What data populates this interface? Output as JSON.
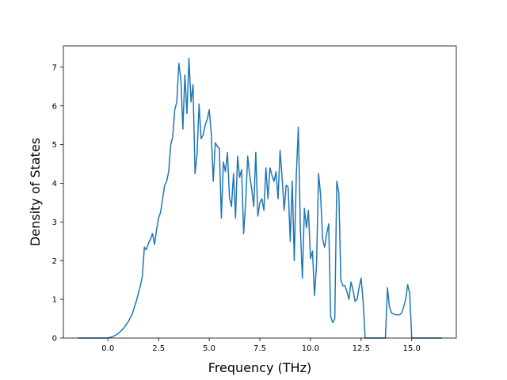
{
  "chart_data": {
    "type": "line",
    "title": "",
    "xlabel": "Frequency (THz)",
    "ylabel": "Density of States",
    "xlim": [
      -2.2,
      17.2
    ],
    "ylim": [
      0,
      7.55
    ],
    "xticks": [
      0.0,
      2.5,
      5.0,
      7.5,
      10.0,
      12.5,
      15.0
    ],
    "xtick_labels": [
      "0.0",
      "2.5",
      "5.0",
      "7.5",
      "10.0",
      "12.5",
      "15.0"
    ],
    "yticks": [
      0,
      1,
      2,
      3,
      4,
      5,
      6,
      7
    ],
    "ytick_labels": [
      "0",
      "1",
      "2",
      "3",
      "4",
      "5",
      "6",
      "7"
    ],
    "grid": false,
    "line_color": "#1f77b4",
    "series": [
      {
        "x": [
          -1.5,
          -1.0,
          -0.5,
          0.0,
          0.2,
          0.4,
          0.6,
          0.8,
          1.0,
          1.2,
          1.4,
          1.6,
          1.7,
          1.8,
          1.9,
          2.0,
          2.1,
          2.2,
          2.3,
          2.4,
          2.5,
          2.6,
          2.7,
          2.8,
          2.9,
          3.0,
          3.1,
          3.2,
          3.3,
          3.4,
          3.5,
          3.6,
          3.7,
          3.8,
          3.9,
          4.0,
          4.1,
          4.2,
          4.3,
          4.4,
          4.5,
          4.6,
          4.7,
          4.8,
          4.9,
          5.0,
          5.1,
          5.2,
          5.3,
          5.4,
          5.5,
          5.6,
          5.7,
          5.8,
          5.9,
          6.0,
          6.1,
          6.2,
          6.3,
          6.4,
          6.5,
          6.6,
          6.7,
          6.8,
          6.9,
          7.0,
          7.1,
          7.2,
          7.3,
          7.4,
          7.5,
          7.6,
          7.7,
          7.8,
          7.9,
          8.0,
          8.1,
          8.2,
          8.3,
          8.4,
          8.5,
          8.6,
          8.7,
          8.8,
          8.9,
          9.0,
          9.1,
          9.2,
          9.3,
          9.4,
          9.5,
          9.6,
          9.7,
          9.8,
          9.9,
          10.0,
          10.1,
          10.2,
          10.3,
          10.4,
          10.5,
          10.6,
          10.7,
          10.8,
          10.9,
          11.0,
          11.1,
          11.2,
          11.3,
          11.4,
          11.5,
          11.6,
          11.7,
          11.8,
          11.9,
          12.0,
          12.1,
          12.2,
          12.3,
          12.4,
          12.5,
          12.6,
          12.7,
          12.8,
          13.0,
          13.5,
          13.7,
          13.8,
          13.9,
          14.0,
          14.2,
          14.4,
          14.5,
          14.6,
          14.7,
          14.8,
          14.9,
          15.0,
          15.5,
          16.0,
          16.5
        ],
        "y": [
          0,
          0,
          0,
          0,
          0.03,
          0.08,
          0.16,
          0.27,
          0.42,
          0.62,
          0.95,
          1.35,
          1.6,
          2.35,
          2.28,
          2.45,
          2.55,
          2.7,
          2.42,
          2.8,
          3.1,
          3.25,
          3.6,
          3.95,
          4.05,
          4.3,
          5.0,
          5.2,
          5.9,
          6.1,
          7.1,
          6.7,
          5.4,
          6.8,
          5.8,
          7.23,
          6.1,
          6.55,
          4.25,
          4.75,
          6.05,
          5.15,
          5.25,
          5.5,
          5.65,
          5.9,
          5.3,
          4.05,
          5.05,
          4.95,
          4.9,
          3.1,
          4.55,
          4.3,
          4.8,
          3.65,
          3.4,
          4.25,
          3.1,
          4.7,
          4.15,
          4.35,
          2.7,
          3.5,
          4.7,
          4.2,
          3.85,
          3.4,
          4.8,
          3.15,
          3.5,
          3.6,
          3.3,
          4.4,
          3.6,
          4.4,
          4.2,
          4.05,
          4.3,
          3.6,
          4.85,
          4.15,
          3.3,
          3.95,
          3.9,
          2.5,
          4.05,
          2.0,
          4.2,
          5.45,
          2.85,
          1.55,
          3.35,
          2.85,
          3.3,
          2.05,
          2.25,
          1.1,
          1.9,
          4.25,
          3.7,
          2.55,
          2.35,
          2.7,
          2.95,
          0.55,
          0.4,
          0.5,
          4.05,
          3.75,
          1.5,
          1.35,
          1.35,
          1.2,
          1.0,
          1.45,
          1.25,
          0.95,
          1.0,
          1.3,
          1.55,
          0.95,
          0,
          0,
          0,
          0,
          0,
          1.3,
          0.8,
          0.65,
          0.6,
          0.6,
          0.65,
          0.8,
          1.0,
          1.38,
          1.15,
          0,
          0,
          0,
          0
        ]
      }
    ]
  }
}
